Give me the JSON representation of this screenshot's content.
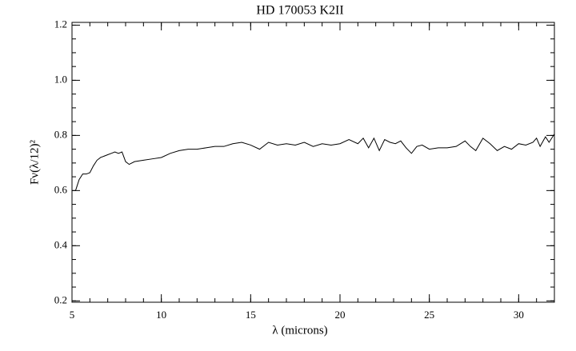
{
  "chart_data": {
    "type": "line",
    "title": "HD 170053 K2II",
    "x_label": "λ (microns)",
    "y_label": "Fν(λ/12)²",
    "x": [
      5.2,
      5.4,
      5.6,
      5.8,
      6.0,
      6.2,
      6.4,
      6.6,
      6.8,
      7.0,
      7.2,
      7.4,
      7.6,
      7.8,
      8.0,
      8.2,
      8.5,
      9.0,
      9.5,
      10.0,
      10.5,
      11.0,
      11.5,
      12.0,
      12.5,
      13.0,
      13.5,
      14.0,
      14.5,
      15.0,
      15.5,
      16.0,
      16.5,
      17.0,
      17.5,
      18.0,
      18.5,
      19.0,
      19.5,
      20.0,
      20.5,
      21.0,
      21.3,
      21.6,
      21.9,
      22.2,
      22.5,
      22.8,
      23.1,
      23.4,
      23.7,
      24.0,
      24.3,
      24.6,
      25.0,
      25.5,
      26.0,
      26.5,
      27.0,
      27.3,
      27.6,
      28.0,
      28.4,
      28.8,
      29.2,
      29.6,
      30.0,
      30.4,
      30.8,
      31.0,
      31.2,
      31.5,
      31.7,
      32.0
    ],
    "series": [
      {
        "color": "#000000",
        "values": [
          0.6,
          0.64,
          0.66,
          0.66,
          0.665,
          0.69,
          0.71,
          0.72,
          0.725,
          0.73,
          0.735,
          0.74,
          0.735,
          0.74,
          0.705,
          0.695,
          0.705,
          0.71,
          0.715,
          0.72,
          0.735,
          0.745,
          0.75,
          0.75,
          0.755,
          0.76,
          0.76,
          0.77,
          0.775,
          0.765,
          0.75,
          0.775,
          0.765,
          0.77,
          0.765,
          0.775,
          0.76,
          0.77,
          0.765,
          0.77,
          0.785,
          0.77,
          0.79,
          0.755,
          0.79,
          0.745,
          0.785,
          0.775,
          0.77,
          0.78,
          0.755,
          0.735,
          0.76,
          0.765,
          0.75,
          0.755,
          0.755,
          0.76,
          0.78,
          0.76,
          0.745,
          0.79,
          0.77,
          0.745,
          0.76,
          0.75,
          0.77,
          0.765,
          0.775,
          0.79,
          0.76,
          0.795,
          0.775,
          0.805
        ]
      }
    ],
    "xlim": [
      5,
      32
    ],
    "ylim": [
      0.195,
      1.21
    ],
    "xticks": [
      5,
      10,
      15,
      20,
      25,
      30
    ],
    "yticks": [
      0.2,
      0.4,
      0.6,
      0.8,
      {
        "value": 1.0,
        "label": "1.0"
      },
      1.2
    ],
    "x_minor_step": 1,
    "y_minor_step": 0.05
  }
}
